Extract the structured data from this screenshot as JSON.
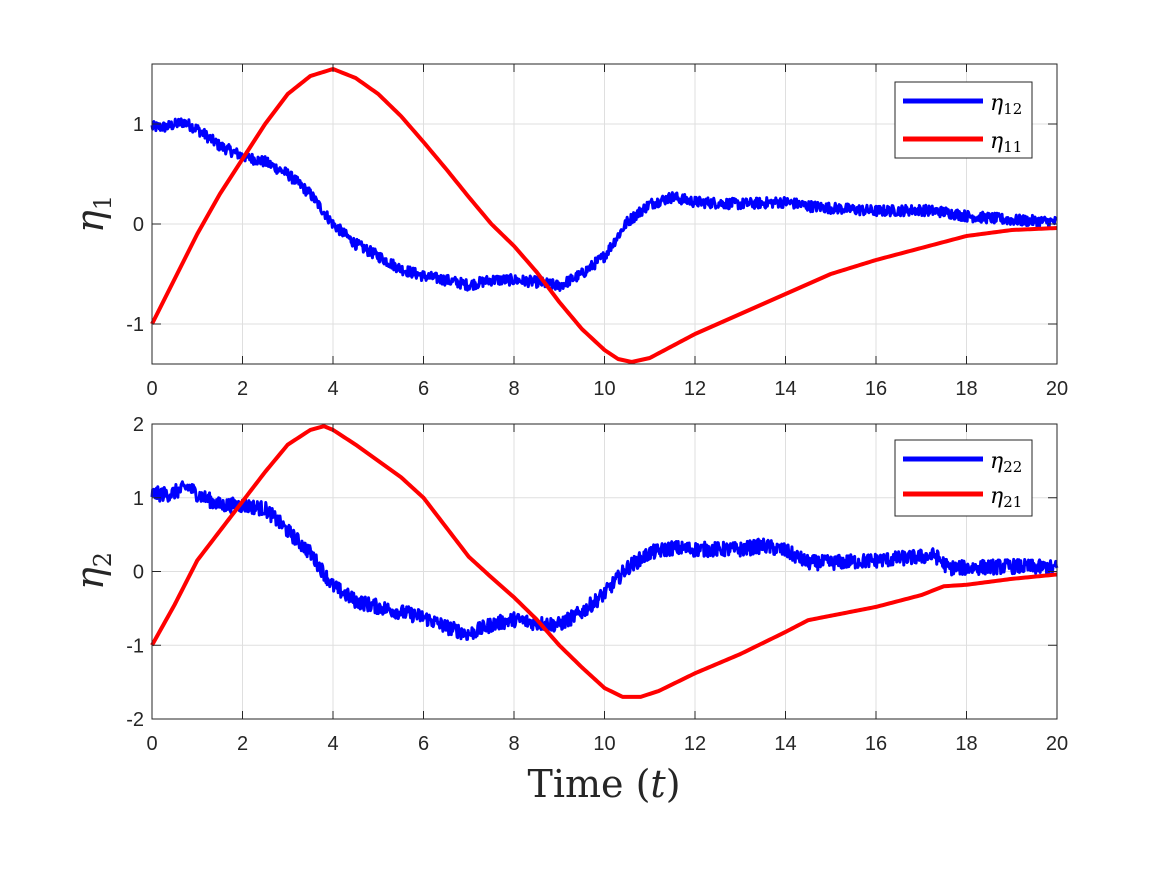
{
  "chart_data": [
    {
      "type": "line",
      "id": "top",
      "ylabel": "η",
      "ylabel_sub": "1",
      "xlabel": "",
      "xlim": [
        0,
        20
      ],
      "ylim": [
        -1.4,
        1.6
      ],
      "xticks": [
        "0",
        "2",
        "4",
        "6",
        "8",
        "10",
        "12",
        "14",
        "16",
        "18",
        "20"
      ],
      "yticks": [
        {
          "value": 1,
          "label": "1"
        },
        {
          "value": 0,
          "label": "0"
        },
        {
          "value": -1,
          "label": "-1"
        }
      ],
      "grid": true,
      "legend_position": "top-right",
      "series": [
        {
          "name": "η12",
          "symbol": "η",
          "sub": "12",
          "color": "#0000ff",
          "noise": 0.055,
          "x": [
            0,
            0.3,
            0.7,
            1,
            1.5,
            2,
            2.5,
            3,
            3.5,
            4,
            4.5,
            5,
            5.5,
            6,
            6.5,
            7,
            7.5,
            8,
            8.5,
            9,
            9.5,
            10,
            10.5,
            11,
            11.5,
            12,
            13,
            14,
            14.5,
            15,
            16,
            17,
            17.5,
            18,
            19,
            20
          ],
          "y": [
            0.97,
            0.97,
            1.02,
            0.95,
            0.78,
            0.68,
            0.62,
            0.5,
            0.3,
            0.0,
            -0.2,
            -0.32,
            -0.45,
            -0.52,
            -0.56,
            -0.61,
            -0.56,
            -0.56,
            -0.58,
            -0.62,
            -0.5,
            -0.32,
            0.02,
            0.2,
            0.27,
            0.22,
            0.2,
            0.22,
            0.18,
            0.16,
            0.13,
            0.14,
            0.12,
            0.08,
            0.04,
            0.02
          ]
        },
        {
          "name": "η11",
          "symbol": "η",
          "sub": "11",
          "color": "#ff0000",
          "noise": 0,
          "x": [
            0,
            0.5,
            1,
            1.5,
            2,
            2.5,
            3,
            3.5,
            4,
            4.5,
            5,
            5.5,
            6,
            6.5,
            7,
            7.5,
            8,
            8.5,
            9,
            9.5,
            10,
            10.3,
            10.6,
            11,
            11.5,
            12,
            13,
            14,
            15,
            16,
            17,
            18,
            19,
            20
          ],
          "y": [
            -1.0,
            -0.55,
            -0.1,
            0.3,
            0.65,
            1.0,
            1.3,
            1.48,
            1.55,
            1.46,
            1.3,
            1.08,
            0.82,
            0.55,
            0.27,
            0.0,
            -0.22,
            -0.48,
            -0.78,
            -1.05,
            -1.26,
            -1.35,
            -1.38,
            -1.34,
            -1.22,
            -1.1,
            -0.9,
            -0.7,
            -0.5,
            -0.36,
            -0.24,
            -0.12,
            -0.06,
            -0.04
          ]
        }
      ]
    },
    {
      "type": "line",
      "id": "bottom",
      "ylabel": "η",
      "ylabel_sub": "2",
      "xlabel": "Time (t)",
      "xlabel_text": "Time (",
      "xlabel_var": "t",
      "xlabel_close": ")",
      "xlim": [
        0,
        20
      ],
      "ylim": [
        -2,
        2
      ],
      "xticks": [
        "0",
        "2",
        "4",
        "6",
        "8",
        "10",
        "12",
        "14",
        "16",
        "18",
        "20"
      ],
      "yticks": [
        {
          "value": 2,
          "label": "2"
        },
        {
          "value": 1,
          "label": "1"
        },
        {
          "value": 0,
          "label": "0"
        },
        {
          "value": -1,
          "label": "-1"
        },
        {
          "value": -2,
          "label": "-2"
        }
      ],
      "grid": true,
      "legend_position": "top-right",
      "series": [
        {
          "name": "η22",
          "symbol": "η",
          "sub": "22",
          "color": "#0000ff",
          "noise": 0.1,
          "x": [
            0,
            0.4,
            0.8,
            1,
            1.5,
            2,
            2.5,
            3,
            3.5,
            4,
            4.5,
            5,
            5.5,
            6,
            6.5,
            7,
            7.5,
            8,
            8.5,
            9,
            9.5,
            10,
            10.5,
            11,
            11.5,
            12,
            13,
            13.5,
            14,
            14.5,
            15,
            16,
            17,
            17.3,
            17.6,
            18,
            19,
            20
          ],
          "y": [
            1.05,
            1.05,
            1.15,
            1.05,
            0.9,
            0.9,
            0.85,
            0.55,
            0.25,
            -0.2,
            -0.4,
            -0.48,
            -0.55,
            -0.62,
            -0.75,
            -0.85,
            -0.72,
            -0.65,
            -0.7,
            -0.72,
            -0.55,
            -0.3,
            0.05,
            0.25,
            0.32,
            0.3,
            0.3,
            0.35,
            0.28,
            0.12,
            0.12,
            0.15,
            0.2,
            0.22,
            0.05,
            0.05,
            0.07,
            0.05
          ]
        },
        {
          "name": "η21",
          "symbol": "η",
          "sub": "21",
          "color": "#ff0000",
          "noise": 0,
          "x": [
            0,
            0.5,
            1,
            1.5,
            2,
            2.5,
            3,
            3.5,
            3.8,
            4,
            4.5,
            5,
            5.5,
            6,
            6.5,
            7,
            7.5,
            8,
            8.5,
            9,
            9.5,
            10,
            10.4,
            10.8,
            11.2,
            12,
            13,
            14,
            14.5,
            15,
            16,
            17,
            17.5,
            18,
            19,
            20
          ],
          "y": [
            -1.0,
            -0.45,
            0.15,
            0.55,
            0.95,
            1.35,
            1.72,
            1.92,
            1.97,
            1.92,
            1.72,
            1.5,
            1.28,
            1.0,
            0.6,
            0.2,
            -0.08,
            -0.35,
            -0.65,
            -1.0,
            -1.3,
            -1.58,
            -1.7,
            -1.7,
            -1.62,
            -1.38,
            -1.12,
            -0.82,
            -0.66,
            -0.6,
            -0.48,
            -0.32,
            -0.2,
            -0.18,
            -0.1,
            -0.04
          ]
        }
      ]
    }
  ]
}
